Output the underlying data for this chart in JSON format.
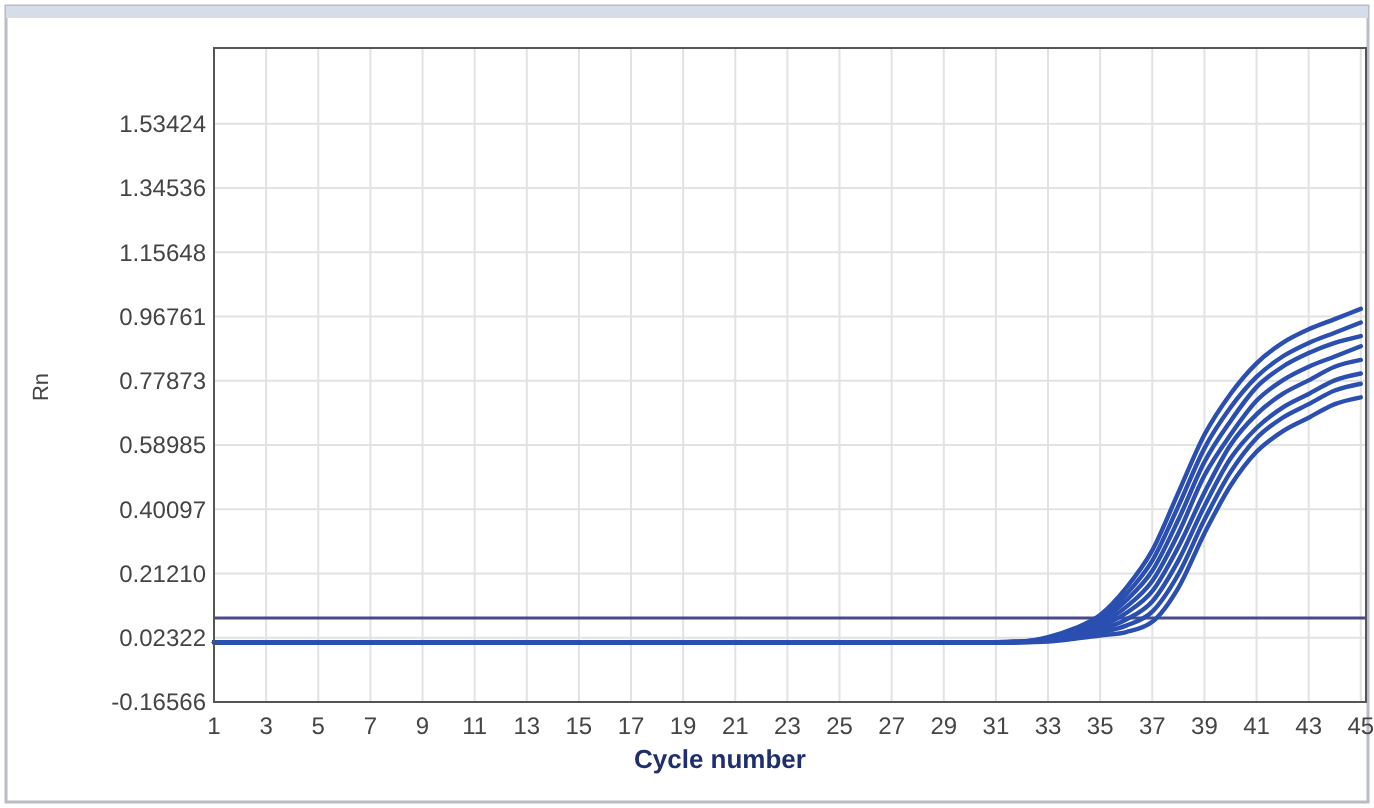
{
  "chart_data": {
    "type": "line",
    "xlabel": "Cycle number",
    "ylabel": "Rn",
    "x": [
      1,
      31,
      32,
      33,
      34,
      35,
      36,
      37,
      38,
      39,
      40,
      41,
      42,
      43,
      44,
      45
    ],
    "xlim": [
      1,
      45.2
    ],
    "xticks": [
      1,
      3,
      5,
      7,
      9,
      11,
      13,
      15,
      17,
      19,
      21,
      23,
      25,
      27,
      29,
      31,
      33,
      35,
      37,
      39,
      41,
      43,
      45
    ],
    "ylim": [
      -0.16566,
      1.757
    ],
    "yticks": [
      -0.16566,
      0.02322,
      {
        "value": 0.2121,
        "label": "0.21210"
      },
      0.40097,
      0.58985,
      0.77873,
      0.96761,
      1.15648,
      1.34536,
      1.53424
    ],
    "grid": true,
    "marker": "none",
    "line_style": "solid",
    "ref_lines": [
      {
        "axis": "y",
        "value": 0.081,
        "color": "#4a4a8a"
      }
    ],
    "series": [
      {
        "color": "#2a4fb0",
        "values": [
          0.01,
          0.01,
          0.012,
          0.025,
          0.05,
          0.09,
          0.17,
          0.28,
          0.45,
          0.62,
          0.74,
          0.83,
          0.89,
          0.93,
          0.96,
          0.99
        ]
      },
      {
        "color": "#2a4fb0",
        "values": [
          0.01,
          0.01,
          0.012,
          0.023,
          0.046,
          0.081,
          0.151,
          0.25,
          0.41,
          0.58,
          0.7,
          0.79,
          0.85,
          0.89,
          0.92,
          0.95
        ]
      },
      {
        "color": "#2a4fb0",
        "values": [
          0.01,
          0.01,
          0.011,
          0.021,
          0.041,
          0.073,
          0.133,
          0.22,
          0.37,
          0.54,
          0.66,
          0.76,
          0.82,
          0.86,
          0.89,
          0.91
        ]
      },
      {
        "color": "#2a4fb0",
        "values": [
          0.01,
          0.01,
          0.011,
          0.019,
          0.037,
          0.064,
          0.114,
          0.19,
          0.33,
          0.5,
          0.62,
          0.72,
          0.78,
          0.82,
          0.85,
          0.88
        ]
      },
      {
        "color": "#2a4fb0",
        "values": [
          0.01,
          0.01,
          0.011,
          0.018,
          0.033,
          0.056,
          0.096,
          0.16,
          0.29,
          0.45,
          0.59,
          0.68,
          0.74,
          0.78,
          0.82,
          0.84
        ]
      },
      {
        "color": "#2a4fb0",
        "values": [
          0.01,
          0.01,
          0.011,
          0.016,
          0.029,
          0.047,
          0.077,
          0.13,
          0.25,
          0.41,
          0.55,
          0.64,
          0.7,
          0.74,
          0.78,
          0.8
        ]
      },
      {
        "color": "#2a4fb0",
        "values": [
          0.01,
          0.01,
          0.01,
          0.014,
          0.024,
          0.039,
          0.059,
          0.1,
          0.21,
          0.37,
          0.51,
          0.61,
          0.67,
          0.71,
          0.75,
          0.77
        ]
      },
      {
        "color": "#2a4fb0",
        "values": [
          0.01,
          0.01,
          0.01,
          0.012,
          0.02,
          0.03,
          0.04,
          0.07,
          0.17,
          0.33,
          0.47,
          0.57,
          0.63,
          0.67,
          0.71,
          0.73
        ]
      }
    ]
  }
}
